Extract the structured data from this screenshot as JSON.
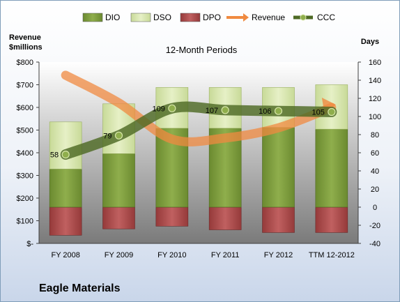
{
  "company": "Eagle Materials",
  "chart_data": {
    "type": "bar",
    "title": "12-Month Periods",
    "y_left_label": [
      "Revenue",
      "$millions"
    ],
    "y_right_label": "Days",
    "categories": [
      "FY 2008",
      "FY 2009",
      "FY 2010",
      "FY 2011",
      "FY 2012",
      "TTM 12-2012"
    ],
    "y_left_ticks": [
      "$-",
      "$100",
      "$200",
      "$300",
      "$400",
      "$500",
      "$600",
      "$700",
      "$800"
    ],
    "y_left_range": [
      0,
      800
    ],
    "y_right_ticks": [
      "-40",
      "-20",
      "0",
      "20",
      "40",
      "60",
      "80",
      "100",
      "120",
      "140",
      "160"
    ],
    "y_right_range": [
      -40,
      160
    ],
    "legend": [
      "DIO",
      "DSO",
      "DPO",
      "Revenue",
      "CCC"
    ],
    "legend_position": "top",
    "grid": false,
    "colors": {
      "DIO": "#7a9a3c",
      "DSO": "#d6e6a8",
      "DPO": "#b04a4a",
      "Revenue": "#f0a060",
      "CCC": "#5a7030"
    },
    "series": [
      {
        "name": "DIO",
        "axis": "right",
        "stack": true,
        "values": [
          42,
          59,
          87,
          87,
          88,
          86
        ]
      },
      {
        "name": "DSO",
        "axis": "right",
        "stack": true,
        "values": [
          52,
          55,
          45,
          45,
          44,
          49
        ]
      },
      {
        "name": "DPO",
        "axis": "right",
        "stack": true,
        "values": [
          -31,
          -24,
          -21,
          -25,
          -28,
          -28
        ]
      },
      {
        "name": "Revenue",
        "axis": "left",
        "type": "line",
        "values": [
          742,
          620,
          460,
          465,
          510,
          600
        ]
      },
      {
        "name": "CCC",
        "axis": "right",
        "type": "line",
        "values": [
          58,
          79,
          109,
          107,
          106,
          105
        ],
        "labels": [
          "58",
          "79",
          "109",
          "107",
          "106",
          "105"
        ]
      }
    ]
  }
}
